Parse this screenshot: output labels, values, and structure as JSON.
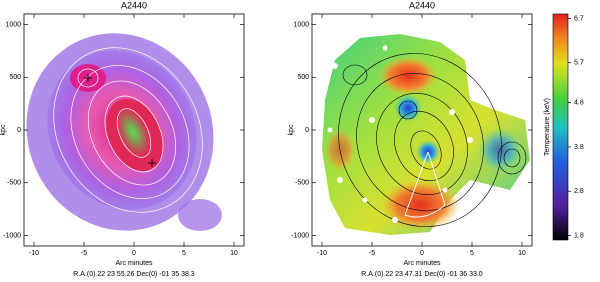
{
  "chart_data": [
    {
      "type": "image",
      "title": "A2440",
      "xlabel": "Arc minutes",
      "ylabel": "kpc",
      "footer": "R.A.(0) 22 23 55.26   Dec(0) -01 35 38.3",
      "xlim": [
        -11,
        11
      ],
      "ylim": [
        -1100,
        1100
      ],
      "xticks": [
        -10,
        -5,
        0,
        5,
        10
      ],
      "yticks": [
        -1000,
        -500,
        0,
        500,
        1000
      ]
    },
    {
      "type": "image",
      "title": "A2440",
      "xlabel": "Arc minutes",
      "ylabel": "kpc",
      "footer": "R.A.(0) 22 23 47.31   Dec(0) -01 36 33.0",
      "xlim": [
        -11,
        11
      ],
      "ylim": [
        -1100,
        1100
      ],
      "xticks": [
        -10,
        -5,
        0,
        5,
        10
      ],
      "yticks": [
        -1000,
        -500,
        0,
        500,
        1000
      ],
      "colorbar_label": "Temperature (keV)",
      "clim": [
        1.7,
        6.8
      ],
      "cticks": [
        1.8,
        2.8,
        3.8,
        4.8,
        5.7,
        6.7
      ]
    }
  ]
}
